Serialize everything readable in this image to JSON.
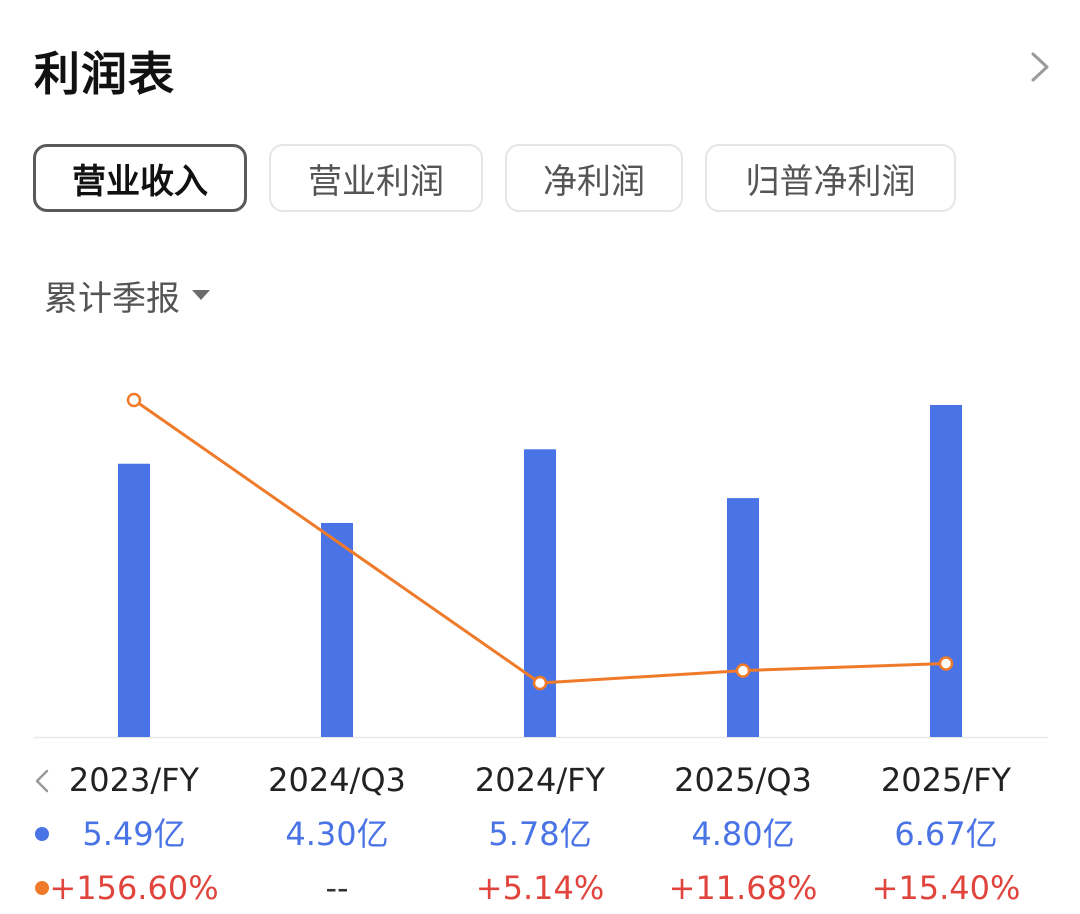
{
  "header": {
    "title": "利润表"
  },
  "tabs": [
    {
      "label": "营业收入",
      "active": true
    },
    {
      "label": "营业利润",
      "active": false
    },
    {
      "label": "净利润",
      "active": false
    },
    {
      "label": "归普净利润",
      "active": false
    }
  ],
  "period_select": {
    "label": "累计季报"
  },
  "colors": {
    "bar": "#4a74e6",
    "line": "#ef7a2a",
    "growth_positive": "#e0443c"
  },
  "chart_data": {
    "type": "bar",
    "categories": [
      "2023/FY",
      "2024/Q3",
      "2024/FY",
      "2025/Q3",
      "2025/FY"
    ],
    "series": [
      {
        "values": [
          5.49,
          4.3,
          5.78,
          4.8,
          6.67
        ],
        "value_labels": [
          "5.49亿",
          "4.30亿",
          "5.78亿",
          "4.80亿",
          "6.67亿"
        ],
        "unit": "亿",
        "color": "#4a74e6"
      },
      {
        "type": "line",
        "values": [
          156.6,
          null,
          5.14,
          11.68,
          15.4
        ],
        "value_labels": [
          "+156.60%",
          "--",
          "+5.14%",
          "+11.68%",
          "+15.40%"
        ],
        "unit": "%",
        "color": "#ef7a2a"
      }
    ],
    "ylim": [
      0,
      6.67
    ],
    "grid": false
  }
}
